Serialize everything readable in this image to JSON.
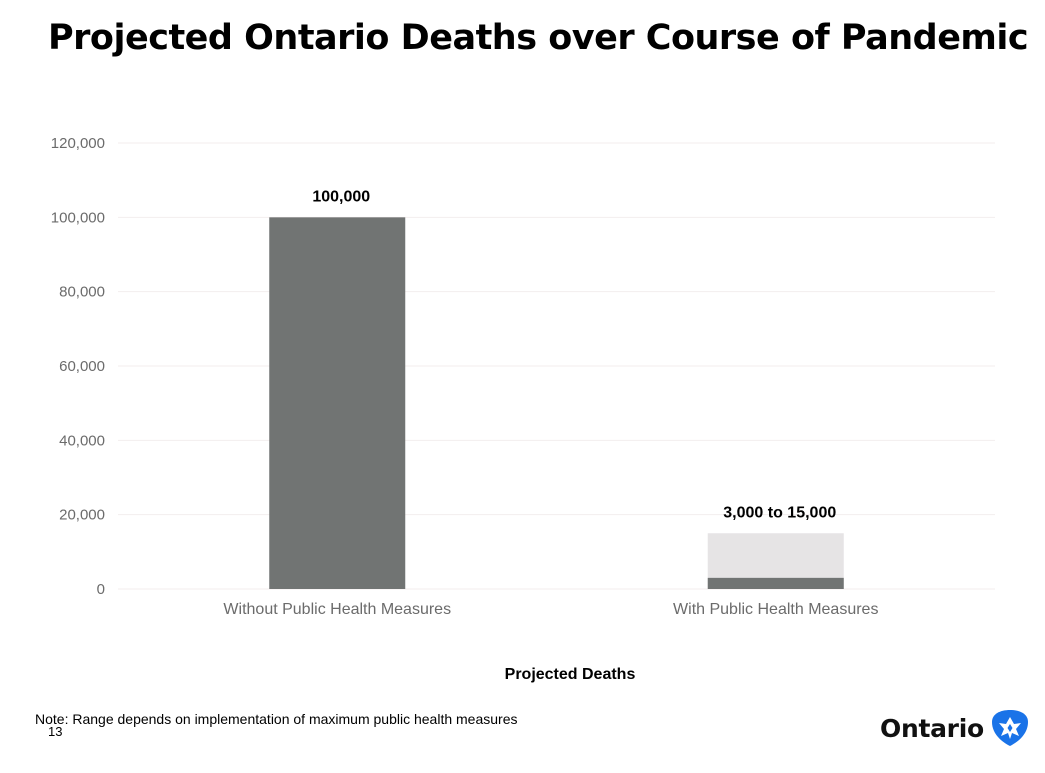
{
  "title": "Projected Ontario Deaths over Course of Pandemic",
  "note": "Note: Range depends on implementation of maximum public health measures",
  "page_number": "13",
  "logo": {
    "text": "Ontario",
    "icon": "trillium-icon",
    "color": "#1a73e8"
  },
  "colors": {
    "bar_dark": "#717473",
    "bar_range": "#e6e4e5",
    "grid": "#f3eeee",
    "tick_text": "#6b6b6b"
  },
  "chart_data": {
    "type": "bar",
    "title": "Projected Ontario Deaths over Course of Pandemic",
    "xlabel": "Projected Deaths",
    "ylabel": "",
    "ylim": [
      0,
      120000
    ],
    "yticks": [
      0,
      20000,
      40000,
      60000,
      80000,
      100000,
      120000
    ],
    "ytick_labels": [
      "0",
      "20,000",
      "40,000",
      "60,000",
      "80,000",
      "100,000",
      "120,000"
    ],
    "categories": [
      "Without Public Health Measures",
      "With Public Health Measures"
    ],
    "values": [
      100000,
      3000
    ],
    "range_high": [
      null,
      15000
    ],
    "data_labels": [
      "100,000",
      "3,000 to 15,000"
    ],
    "grid": true,
    "legend": "none"
  }
}
